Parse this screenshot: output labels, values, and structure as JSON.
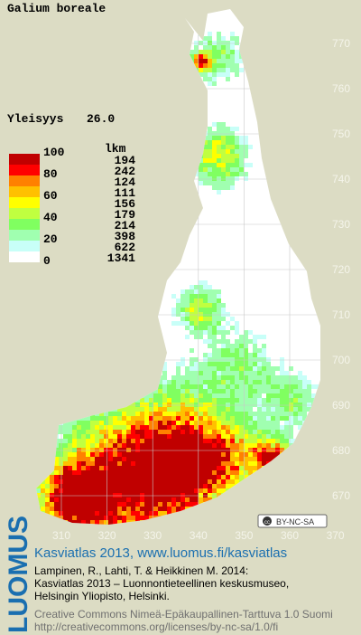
{
  "title": "Galium boreale",
  "frequency": {
    "label": "Yleisyys",
    "value": "26.0"
  },
  "legend": {
    "levels": [
      "100",
      "80",
      "60",
      "40",
      "20",
      "0"
    ],
    "count_header": "lkm",
    "counts": [
      "194",
      "242",
      "124",
      "111",
      "156",
      "179",
      "214",
      "398",
      "622",
      "1341"
    ],
    "colors": [
      "#c00000",
      "#ff0000",
      "#ff8000",
      "#ffc000",
      "#ffff00",
      "#c0ff40",
      "#80ff60",
      "#a0ffb0",
      "#c8fff8",
      "#ffffff"
    ]
  },
  "map": {
    "yticks": [
      "770",
      "760",
      "750",
      "740",
      "730",
      "720",
      "710",
      "700",
      "690",
      "680",
      "670"
    ],
    "xticks": [
      "310",
      "320",
      "330",
      "340",
      "350",
      "360",
      "370"
    ],
    "license_badge": "BY-NC-SA"
  },
  "footer": {
    "brand": "LUOMUS",
    "headline": "Kasviatlas 2013, www.luomus.fi/kasviatlas",
    "citation": [
      "Lampinen, R., Lahti, T. & Heikkinen M. 2014:",
      "Kasviatlas 2013 – Luonnontieteellinen keskusmuseo,",
      "Helsingin Yliopisto, Helsinki."
    ],
    "license": [
      "Creative Commons Nimeä-Epäkaupallinen-Tarttuva 1.0 Suomi",
      "http://creativecommons.org/licenses/by-nc-sa/1.0/fi"
    ]
  }
}
